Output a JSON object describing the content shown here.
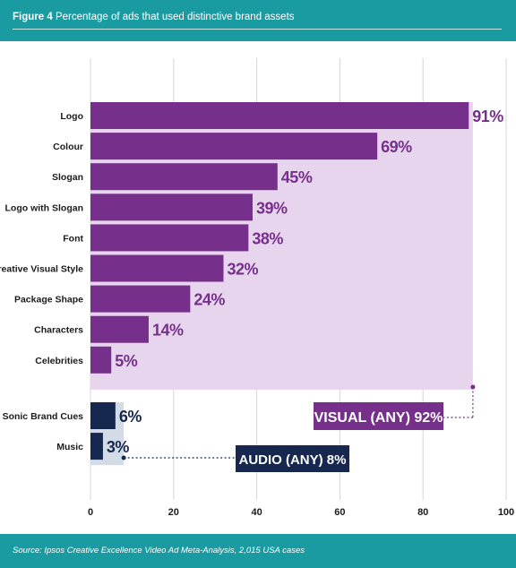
{
  "header": {
    "figure_label": "Figure 4",
    "title": "Percentage of ads that used distinctive brand assets"
  },
  "footer": {
    "source": "Source: Ipsos Creative Excellence Video Ad Meta-Analysis, 2,015 USA cases"
  },
  "colors": {
    "teal": "#1a9ba1",
    "visual_bar": "#76308b",
    "visual_band": "#e7d5ee",
    "audio_bar": "#16284f",
    "audio_band": "#d3dbe7",
    "grid": "#d6d6d6"
  },
  "chart_data": {
    "type": "bar",
    "orientation": "horizontal",
    "title": "Percentage of ads that used distinctive brand assets",
    "xlabel": "",
    "ylabel": "",
    "xlim": [
      0,
      100
    ],
    "xticks": [
      0,
      20,
      40,
      60,
      80,
      100
    ],
    "grid": true,
    "groups": [
      {
        "name": "VISUAL (ANY) 92%",
        "total": 92,
        "color": "#76308b",
        "categories": [
          "Logo",
          "Colour",
          "Slogan",
          "Logo with Slogan",
          "Font",
          "Creative Visual Style",
          "Package Shape",
          "Characters",
          "Celebrities"
        ],
        "values": [
          91,
          69,
          45,
          39,
          38,
          32,
          24,
          14,
          5
        ],
        "value_labels": [
          "91%",
          "69%",
          "45%",
          "39%",
          "38%",
          "32%",
          "24%",
          "14%",
          "5%"
        ]
      },
      {
        "name": "AUDIO (ANY) 8%",
        "total": 8,
        "color": "#16284f",
        "categories": [
          "Sonic Brand Cues",
          "Music"
        ],
        "values": [
          6,
          3
        ],
        "value_labels": [
          "6%",
          "3%"
        ]
      }
    ]
  }
}
